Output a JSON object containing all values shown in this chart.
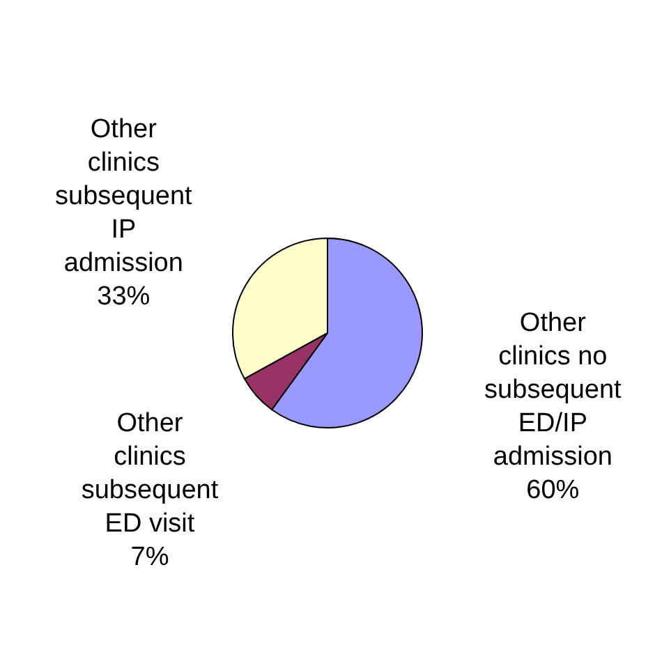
{
  "chart_data": {
    "type": "pie",
    "categories": [
      "Other clinics no subsequent ED/IP admission",
      "Other clinics subsequent ED visit",
      "Other clinics subsequent IP admission"
    ],
    "values": [
      60,
      7,
      33
    ],
    "value_labels": [
      "60%",
      "7%",
      "33%"
    ],
    "colors": [
      "#9999ff",
      "#993366",
      "#ffffcc"
    ]
  }
}
